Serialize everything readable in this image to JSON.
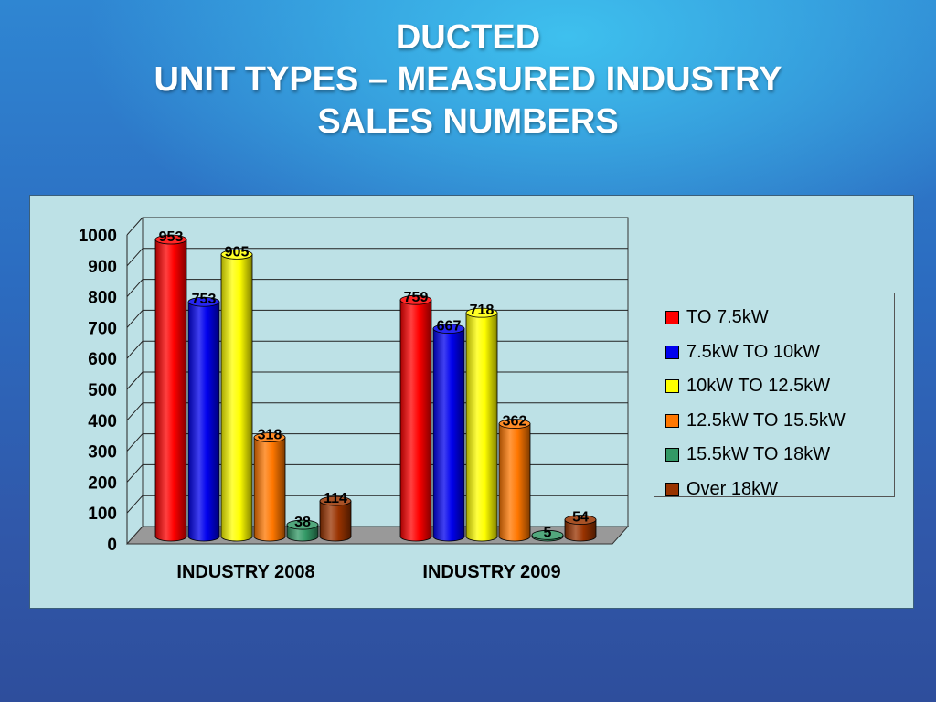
{
  "slide": {
    "title_lines": [
      "DUCTED",
      "UNIT TYPES – MEASURED INDUSTRY",
      "SALES NUMBERS"
    ]
  },
  "chart_data": {
    "type": "bar",
    "categories": [
      "INDUSTRY 2008",
      "INDUSTRY 2009"
    ],
    "series": [
      {
        "name": "TO 7.5kW",
        "values": [
          953,
          759
        ],
        "color": "#ff0000"
      },
      {
        "name": "7.5kW TO 10kW",
        "values": [
          753,
          667
        ],
        "color": "#0000ee"
      },
      {
        "name": "10kW TO 12.5kW",
        "values": [
          905,
          718
        ],
        "color": "#ffff00"
      },
      {
        "name": "12.5kW TO 15.5kW",
        "values": [
          318,
          362
        ],
        "color": "#ff7700"
      },
      {
        "name": "15.5kW TO 18kW",
        "values": [
          38,
          5
        ],
        "color": "#339966"
      },
      {
        "name": "Over 18kW",
        "values": [
          114,
          54
        ],
        "color": "#993300"
      }
    ],
    "ylim": [
      0,
      1000
    ],
    "yticks": [
      0,
      100,
      200,
      300,
      400,
      500,
      600,
      700,
      800,
      900,
      1000
    ],
    "grid": true,
    "legend_position": "right"
  }
}
